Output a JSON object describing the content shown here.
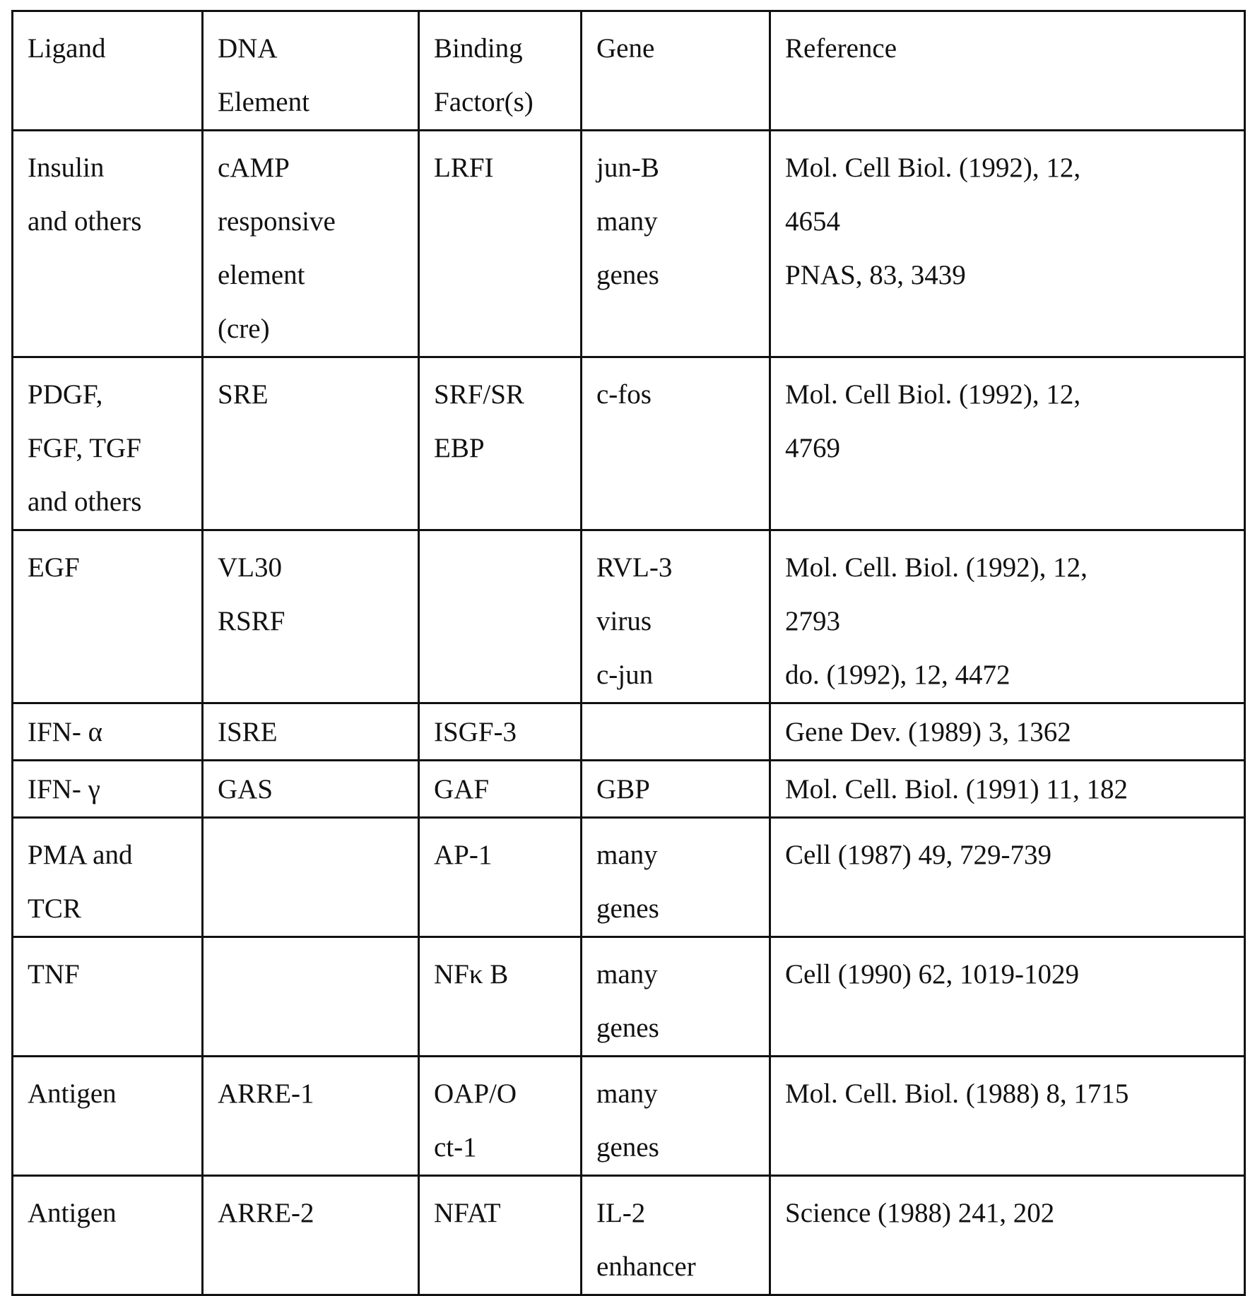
{
  "headers": [
    "Ligand",
    "DNA\nElement",
    "Binding\nFactor(s)",
    "Gene",
    "Reference"
  ],
  "rows": [
    [
      "Insulin\nand others",
      "cAMP\nresponsive\nelement\n(cre)",
      "LRFI",
      "jun-B\nmany\ngenes",
      "Mol. Cell Biol. (1992), 12,\n4654\nPNAS, 83, 3439"
    ],
    [
      "PDGF,\nFGF, TGF\nand others",
      "SRE",
      "SRF/SR\nEBP",
      "c-fos",
      "Mol. Cell Biol. (1992), 12,\n4769"
    ],
    [
      "EGF",
      "VL30\nRSRF",
      "",
      "RVL-3\nvirus\nc-jun",
      "Mol. Cell. Biol. (1992), 12,\n2793\ndo. (1992), 12, 4472"
    ],
    [
      "IFN- α",
      "ISRE",
      "ISGF-3",
      "",
      "Gene Dev. (1989) 3, 1362"
    ],
    [
      "IFN- γ",
      "GAS",
      "GAF",
      "GBP",
      "Mol. Cell. Biol. (1991) 11, 182"
    ],
    [
      "PMA and\nTCR",
      "",
      "AP-1",
      "many\ngenes",
      "Cell (1987) 49, 729-739"
    ],
    [
      "TNF",
      "",
      "NFκ B",
      "many\ngenes",
      "Cell (1990) 62, 1019-1029"
    ],
    [
      "Antigen",
      "ARRE-1",
      "OAP/O\nct-1",
      "many\ngenes",
      "Mol. Cell. Biol. (1988) 8, 1715"
    ],
    [
      "Antigen",
      "ARRE-2",
      "NFAT",
      "IL-2\nenhancer",
      "Science (1988) 241, 202"
    ]
  ]
}
